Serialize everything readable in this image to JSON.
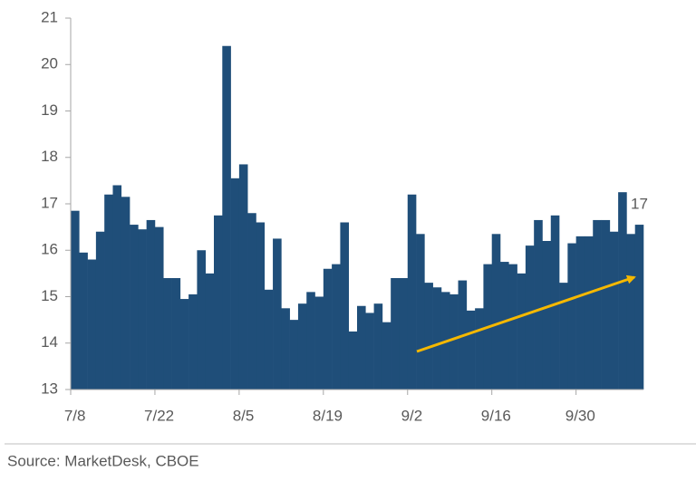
{
  "chart_data": {
    "type": "bar",
    "categories": [
      "7/8",
      null,
      null,
      null,
      null,
      null,
      null,
      null,
      null,
      null,
      "7/22",
      null,
      null,
      null,
      null,
      null,
      null,
      null,
      null,
      null,
      "8/5",
      null,
      null,
      null,
      null,
      null,
      null,
      null,
      null,
      null,
      "8/19",
      null,
      null,
      null,
      null,
      null,
      null,
      null,
      null,
      null,
      "9/2",
      null,
      null,
      null,
      null,
      null,
      null,
      null,
      null,
      null,
      "9/16",
      null,
      null,
      null,
      null,
      null,
      null,
      null,
      null,
      null,
      "9/30",
      null,
      null,
      null,
      null,
      null,
      null,
      null
    ],
    "values": [
      16.85,
      15.95,
      15.8,
      16.4,
      17.2,
      17.4,
      17.15,
      16.55,
      16.45,
      16.65,
      16.5,
      15.4,
      15.4,
      14.95,
      15.05,
      16.0,
      15.5,
      16.75,
      20.4,
      17.55,
      17.85,
      16.8,
      16.6,
      15.15,
      16.25,
      14.75,
      14.5,
      14.85,
      15.1,
      15.0,
      15.6,
      15.7,
      16.6,
      14.25,
      14.8,
      14.65,
      14.85,
      14.45,
      15.4,
      15.4,
      17.2,
      16.35,
      15.3,
      15.2,
      15.1,
      15.05,
      15.35,
      14.7,
      14.75,
      15.7,
      16.35,
      15.75,
      15.7,
      15.5,
      16.1,
      16.65,
      16.2,
      16.75,
      15.3,
      16.15,
      16.3,
      16.3,
      16.65,
      16.65,
      16.4,
      17.25,
      16.35,
      16.55
    ],
    "color": "#1f4e79",
    "ylim": [
      13,
      21
    ],
    "yticks": [
      13,
      14,
      15,
      16,
      17,
      18,
      19,
      20,
      21
    ],
    "annotation": "17",
    "source": "Source: MarketDesk, CBOE"
  }
}
